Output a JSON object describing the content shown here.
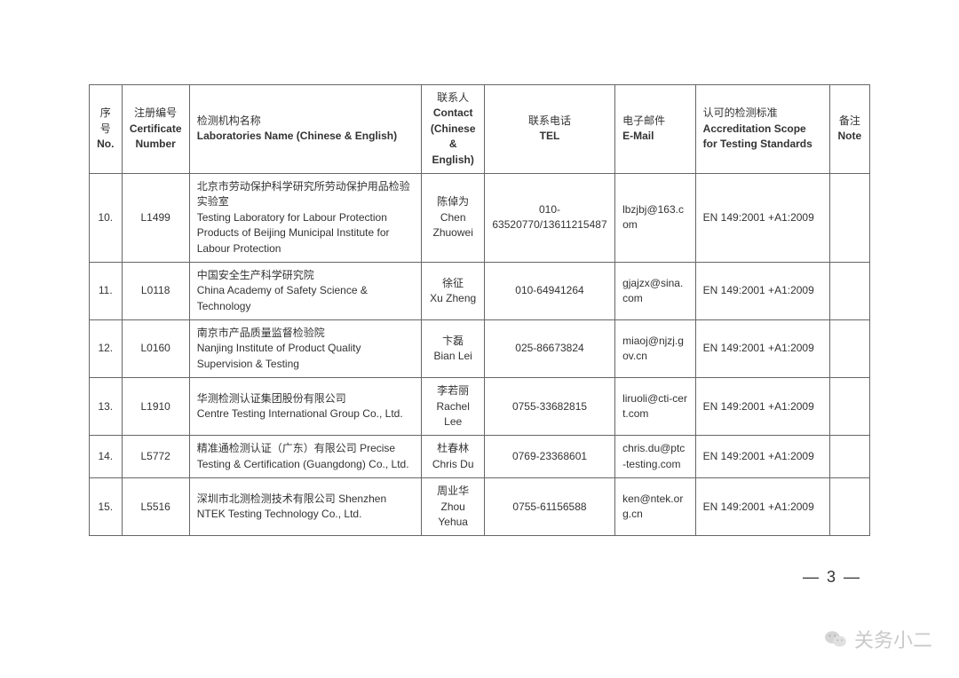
{
  "headers": {
    "no": {
      "cn": "序号",
      "en": "No."
    },
    "cert": {
      "cn": "注册编号",
      "en": "Certificate Number"
    },
    "lab": {
      "cn": "检测机构名称",
      "en": "Laboratories Name (Chinese & English)"
    },
    "contact": {
      "cn": "联系人",
      "en": "Contact (Chinese & English)"
    },
    "tel": {
      "cn": "联系电话",
      "en": "TEL"
    },
    "email": {
      "cn": "电子邮件",
      "en": "E-Mail"
    },
    "scope": {
      "cn": "认可的检测标准",
      "en": "Accreditation Scope for Testing Standards"
    },
    "note": {
      "cn": "备注",
      "en": "Note"
    }
  },
  "rows": [
    {
      "no": "10.",
      "cert": "L1499",
      "lab_cn": "北京市劳动保护科学研究所劳动保护用品检验实验室",
      "lab_en": "Testing Laboratory for Labour Protection Products of Beijing Municipal Institute for Labour Protection",
      "contact_cn": "陈倬为",
      "contact_en": "Chen Zhuowei",
      "tel": "010-63520770/13611215487",
      "email": "lbzjbj@163.com",
      "scope": "EN 149:2001 +A1:2009",
      "note": ""
    },
    {
      "no": "11.",
      "cert": "L0118",
      "lab_cn": "中国安全生产科学研究院",
      "lab_en": "China Academy of Safety Science & Technology",
      "contact_cn": "徐征",
      "contact_en": "Xu Zheng",
      "tel": "010-64941264",
      "email": "gjajzx@sina.com",
      "scope": "EN 149:2001 +A1:2009",
      "note": ""
    },
    {
      "no": "12.",
      "cert": "L0160",
      "lab_cn": "南京市产品质量监督检验院",
      "lab_en": "Nanjing Institute of Product Quality Supervision & Testing",
      "contact_cn": "卞磊",
      "contact_en": "Bian Lei",
      "tel": "025-86673824",
      "email": "miaoj@njzj.gov.cn",
      "scope": "EN 149:2001 +A1:2009",
      "note": ""
    },
    {
      "no": "13.",
      "cert": "L1910",
      "lab_cn": "华测检测认证集团股份有限公司",
      "lab_en": "Centre Testing International Group Co., Ltd.",
      "contact_cn": "李若丽",
      "contact_en": "Rachel Lee",
      "tel": "0755-33682815",
      "email": "liruoli@cti-cert.com",
      "scope": "EN 149:2001 +A1:2009",
      "note": ""
    },
    {
      "no": "14.",
      "cert": "L5772",
      "lab_cn": "精准通检测认证（广东）有限公司    Precise Testing & Certification (Guangdong) Co., Ltd.",
      "lab_en": "",
      "contact_cn": "杜春林",
      "contact_en": "Chris Du",
      "tel": "0769-23368601",
      "email": "chris.du@ptc-testing.com",
      "scope": "EN 149:2001 +A1:2009",
      "note": ""
    },
    {
      "no": "15.",
      "cert": "L5516",
      "lab_cn": "深圳市北测检测技术有限公司    Shenzhen NTEK Testing Technology Co., Ltd.",
      "lab_en": "",
      "contact_cn": "周业华",
      "contact_en": "Zhou Yehua",
      "tel": "0755-61156588",
      "email": "ken@ntek.org.cn",
      "scope": "EN 149:2001 +A1:2009",
      "note": ""
    }
  ],
  "page_number": "— 3 —",
  "watermark_text": "关务小二"
}
